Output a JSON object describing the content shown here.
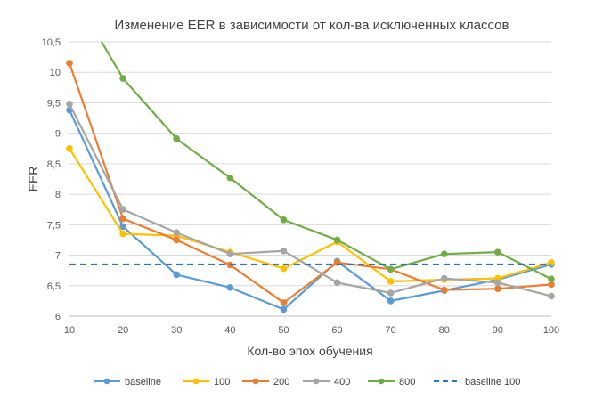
{
  "chart_data": {
    "type": "line",
    "title": "Изменение EER в зависимости от кол-ва исключенных классов",
    "xlabel": "Кол-во эпох обучения",
    "ylabel": "EER",
    "x": [
      10,
      20,
      30,
      40,
      50,
      60,
      70,
      80,
      90,
      100
    ],
    "xlim": [
      10,
      100
    ],
    "ylim": [
      6,
      10.5
    ],
    "x_ticks": [
      "10",
      "20",
      "30",
      "40",
      "50",
      "60",
      "70",
      "80",
      "90",
      "100"
    ],
    "y_ticks": [
      "6",
      "6,5",
      "7",
      "7,5",
      "8",
      "8,5",
      "9",
      "9,5",
      "10",
      "10,5"
    ],
    "grid": true,
    "legend_position": "bottom",
    "series": [
      {
        "name": "baseline",
        "color": "#5b9bd5",
        "dashed": false,
        "markers": true,
        "values": [
          9.38,
          7.47,
          6.68,
          6.47,
          6.11,
          6.9,
          6.25,
          6.42,
          6.6,
          6.85
        ]
      },
      {
        "name": "100",
        "color": "#ffc000",
        "dashed": false,
        "markers": true,
        "values": [
          8.75,
          7.35,
          7.32,
          7.05,
          6.78,
          7.22,
          6.57,
          6.6,
          6.62,
          6.88
        ]
      },
      {
        "name": "200",
        "color": "#ed7d31",
        "dashed": false,
        "markers": true,
        "values": [
          10.15,
          7.6,
          7.25,
          6.84,
          6.22,
          6.88,
          6.77,
          6.43,
          6.45,
          6.52
        ]
      },
      {
        "name": "400",
        "color": "#a5a5a5",
        "dashed": false,
        "markers": true,
        "values": [
          9.48,
          7.75,
          7.37,
          7.02,
          7.07,
          6.55,
          6.38,
          6.62,
          6.55,
          6.33
        ]
      },
      {
        "name": "800",
        "color": "#70ad47",
        "dashed": false,
        "markers": true,
        "values": [
          11.4,
          9.9,
          8.91,
          8.27,
          7.58,
          7.25,
          6.77,
          7.02,
          7.05,
          6.61
        ]
      },
      {
        "name": "baseline 100",
        "color": "#2e75b6",
        "dashed": true,
        "markers": false,
        "values": [
          6.85,
          6.85,
          6.85,
          6.85,
          6.85,
          6.85,
          6.85,
          6.85,
          6.85,
          6.85
        ]
      }
    ]
  }
}
